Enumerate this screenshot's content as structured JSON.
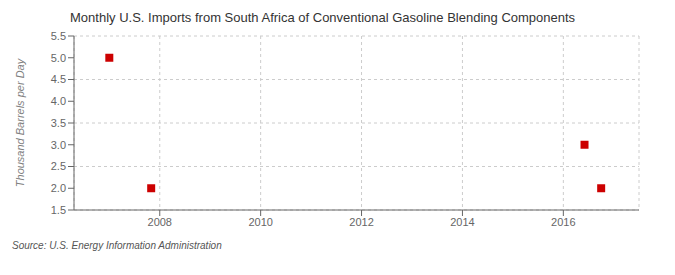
{
  "chart_data": {
    "type": "scatter",
    "title": "Monthly U.S. Imports from South Africa of Conventional Gasoline Blending Components",
    "ylabel": "Thousand Barrels per Day",
    "source": "Source: U.S. Energy Information Administration",
    "x": [
      2007.0,
      2007.83,
      2016.42,
      2016.75
    ],
    "values": [
      5.0,
      2.0,
      3.0,
      2.0
    ],
    "color": "#cc0000",
    "marker": "square",
    "xlim": [
      2006.3,
      2017.5
    ],
    "ylim": [
      1.5,
      5.5
    ],
    "xticks": [
      2008,
      2010,
      2012,
      2014,
      2016
    ],
    "yticks": [
      1.5,
      {
        "value": 2,
        "label": "2.0"
      },
      2.5,
      {
        "value": 3,
        "label": "3.0"
      },
      3.5,
      {
        "value": 4,
        "label": "4.0"
      },
      4.5,
      {
        "value": 5,
        "label": "5.0"
      },
      5.5
    ],
    "grid": true
  }
}
